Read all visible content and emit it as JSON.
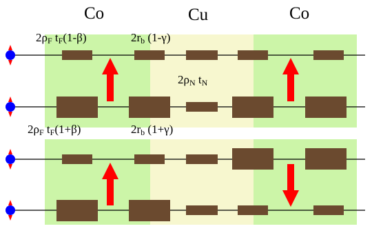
{
  "headers": {
    "left": "Co",
    "middle": "Cu",
    "right": "Co"
  },
  "labels": {
    "ferro_minus": {
      "rho": "2ρ",
      "rho_sub": "F",
      "t": " t",
      "t_sub": "F",
      "tail": "(1-β)"
    },
    "interface_minus": {
      "r": "2r",
      "r_sub": "b",
      "tail": " (1-γ)"
    },
    "normal": {
      "rho": "2ρ",
      "rho_sub": "N",
      "t": " t",
      "t_sub": "N"
    },
    "ferro_plus": {
      "rho": "2ρ",
      "rho_sub": "F",
      "t": " t",
      "t_sub": "F",
      "tail": "(1+β)"
    },
    "interface_plus": {
      "r": "2r",
      "r_sub": "b",
      "tail": " (1+γ)"
    }
  },
  "colors": {
    "ferromagnet_region": "#ccf5a8",
    "normal_region": "#f7f7cf",
    "resistor": "#6b4a2f",
    "arrow": "#ff0000",
    "spin_dot": "#0000ff",
    "wire": "#000000"
  }
}
